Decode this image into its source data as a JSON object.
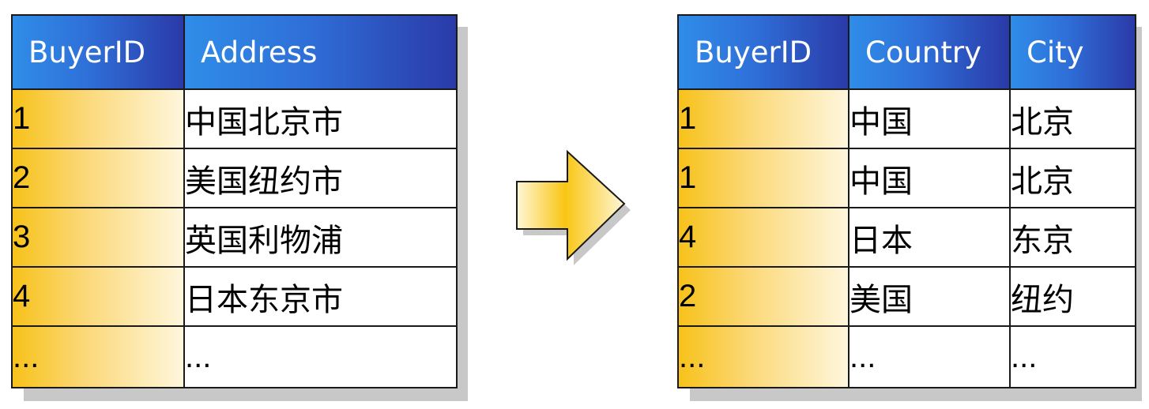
{
  "left_table": {
    "headers": [
      "BuyerID",
      "Address"
    ],
    "rows": [
      [
        "1",
        "中国北京市"
      ],
      [
        "2",
        "美国纽约市"
      ],
      [
        "3",
        "英国利物浦"
      ],
      [
        "4",
        "日本东京市"
      ],
      [
        "...",
        "..."
      ]
    ]
  },
  "right_table": {
    "headers": [
      "BuyerID",
      "Country",
      "City"
    ],
    "rows": [
      [
        "1",
        "中国",
        "北京"
      ],
      [
        "1",
        "中国",
        "北京"
      ],
      [
        "4",
        "日本",
        "东京"
      ],
      [
        "2",
        "美国",
        "纽约"
      ],
      [
        "...",
        "...",
        "..."
      ]
    ]
  },
  "colors": {
    "header_start": "#2f8de8",
    "header_end": "#2a3aa8",
    "id_col_start": "#f7c21a",
    "id_col_end": "#fef6dc",
    "arrow_fill": "#f9c614",
    "border": "#1a1a1a"
  },
  "icons": {
    "transform_arrow": "right-arrow-icon"
  }
}
